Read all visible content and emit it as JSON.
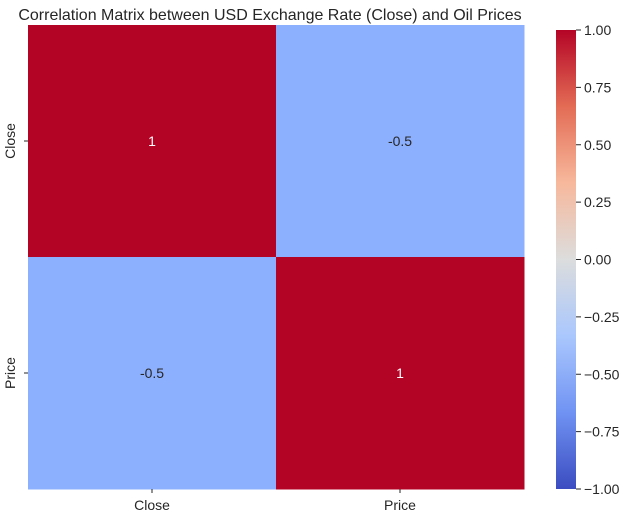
{
  "chart_data": {
    "type": "heatmap",
    "title": "Correlation Matrix between USD Exchange Rate (Close) and Oil Prices",
    "x_labels": [
      "Close",
      "Price"
    ],
    "y_labels": [
      "Close",
      "Price"
    ],
    "values": [
      [
        1,
        -0.5
      ],
      [
        -0.5,
        1
      ]
    ],
    "annotations": [
      [
        "1",
        "-0.5"
      ],
      [
        "-0.5",
        "1"
      ]
    ],
    "colormap": "coolwarm",
    "vmin": -1.0,
    "vmax": 1.0,
    "colorbar_ticks": [
      1.0,
      0.75,
      0.5,
      0.25,
      0.0,
      -0.25,
      -0.5,
      -0.75,
      -1.0
    ],
    "colorbar_tick_labels": [
      "1.00",
      "0.75",
      "0.50",
      "0.25",
      "0.00",
      "−0.25",
      "−0.50",
      "−0.75",
      "−1.00"
    ],
    "cell_colors": [
      [
        "#b40426",
        "#8db0fe"
      ],
      [
        "#8db0fe",
        "#b40426"
      ]
    ],
    "colorbar_stops": [
      "#b40426",
      "#e36c55",
      "#f7b89c",
      "#dcdddd",
      "#aac7fd",
      "#7093f3",
      "#3b4cc0"
    ]
  }
}
